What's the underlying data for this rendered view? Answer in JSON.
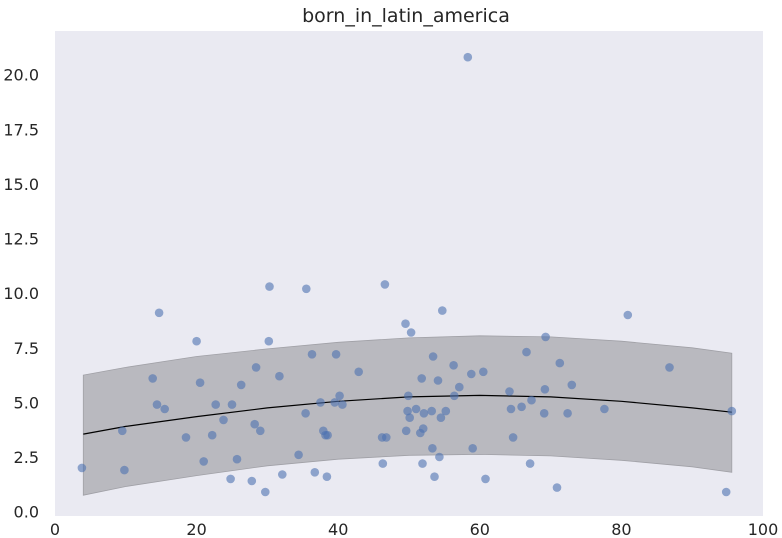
{
  "chart_data": {
    "type": "scatter",
    "title": "born_in_latin_america",
    "xlabel": "",
    "ylabel": "",
    "xlim": [
      0,
      100
    ],
    "ylim": [
      -0.2,
      22
    ],
    "x_ticks": [
      0,
      20,
      40,
      60,
      80,
      100
    ],
    "x_tick_labels": [
      "0",
      "20",
      "40",
      "60",
      "80",
      "100"
    ],
    "y_ticks": [
      0,
      2.5,
      5,
      7.5,
      10,
      12.5,
      15,
      17.5,
      20
    ],
    "y_tick_labels": [
      "0.0",
      "2.5",
      "5.0",
      "7.5",
      "10.0",
      "12.5",
      "15.0",
      "17.5",
      "20.0"
    ],
    "grid": false,
    "colors": {
      "background": "#eaeaf2",
      "points": "#4c72b0",
      "band": "#b0b0b6",
      "fit_line": "#000000"
    },
    "points": [
      {
        "x": 3.8,
        "y": 2.0
      },
      {
        "x": 9.5,
        "y": 3.7
      },
      {
        "x": 9.8,
        "y": 1.9
      },
      {
        "x": 13.8,
        "y": 6.1
      },
      {
        "x": 14.4,
        "y": 4.9
      },
      {
        "x": 14.7,
        "y": 9.1
      },
      {
        "x": 15.5,
        "y": 4.7
      },
      {
        "x": 18.5,
        "y": 3.4
      },
      {
        "x": 20.0,
        "y": 7.8
      },
      {
        "x": 20.5,
        "y": 5.9
      },
      {
        "x": 21.0,
        "y": 2.3
      },
      {
        "x": 22.2,
        "y": 3.5
      },
      {
        "x": 22.7,
        "y": 4.9
      },
      {
        "x": 23.8,
        "y": 4.2
      },
      {
        "x": 24.8,
        "y": 1.5
      },
      {
        "x": 25.0,
        "y": 4.9
      },
      {
        "x": 25.7,
        "y": 2.4
      },
      {
        "x": 26.3,
        "y": 5.8
      },
      {
        "x": 27.8,
        "y": 1.4
      },
      {
        "x": 28.2,
        "y": 4.0
      },
      {
        "x": 28.4,
        "y": 6.6
      },
      {
        "x": 29.0,
        "y": 3.7
      },
      {
        "x": 29.7,
        "y": 0.9
      },
      {
        "x": 30.2,
        "y": 7.8
      },
      {
        "x": 30.3,
        "y": 10.3
      },
      {
        "x": 31.7,
        "y": 6.2
      },
      {
        "x": 32.1,
        "y": 1.7
      },
      {
        "x": 34.4,
        "y": 2.6
      },
      {
        "x": 35.4,
        "y": 4.5
      },
      {
        "x": 35.5,
        "y": 10.2
      },
      {
        "x": 36.3,
        "y": 7.2
      },
      {
        "x": 36.7,
        "y": 1.8
      },
      {
        "x": 37.5,
        "y": 5.0
      },
      {
        "x": 37.9,
        "y": 3.7
      },
      {
        "x": 38.2,
        "y": 3.5
      },
      {
        "x": 38.4,
        "y": 1.6
      },
      {
        "x": 38.5,
        "y": 3.5
      },
      {
        "x": 39.5,
        "y": 5.0
      },
      {
        "x": 39.7,
        "y": 7.2
      },
      {
        "x": 40.2,
        "y": 5.3
      },
      {
        "x": 40.6,
        "y": 4.9
      },
      {
        "x": 42.9,
        "y": 6.4
      },
      {
        "x": 46.2,
        "y": 3.4
      },
      {
        "x": 46.3,
        "y": 2.2
      },
      {
        "x": 46.6,
        "y": 10.4
      },
      {
        "x": 46.8,
        "y": 3.4
      },
      {
        "x": 49.5,
        "y": 8.6
      },
      {
        "x": 49.6,
        "y": 3.7
      },
      {
        "x": 49.8,
        "y": 4.6
      },
      {
        "x": 49.9,
        "y": 5.3
      },
      {
        "x": 50.1,
        "y": 4.3
      },
      {
        "x": 50.3,
        "y": 8.2
      },
      {
        "x": 51.0,
        "y": 4.7
      },
      {
        "x": 51.6,
        "y": 3.6
      },
      {
        "x": 51.8,
        "y": 6.1
      },
      {
        "x": 51.9,
        "y": 2.2
      },
      {
        "x": 52.0,
        "y": 3.8
      },
      {
        "x": 52.1,
        "y": 4.5
      },
      {
        "x": 53.2,
        "y": 4.6
      },
      {
        "x": 53.3,
        "y": 2.9
      },
      {
        "x": 53.4,
        "y": 7.1
      },
      {
        "x": 53.6,
        "y": 1.6
      },
      {
        "x": 54.1,
        "y": 6.0
      },
      {
        "x": 54.3,
        "y": 2.5
      },
      {
        "x": 54.5,
        "y": 4.3
      },
      {
        "x": 54.7,
        "y": 9.2
      },
      {
        "x": 55.2,
        "y": 4.6
      },
      {
        "x": 56.3,
        "y": 6.7
      },
      {
        "x": 56.4,
        "y": 5.3
      },
      {
        "x": 57.1,
        "y": 5.7
      },
      {
        "x": 58.3,
        "y": 20.8
      },
      {
        "x": 58.8,
        "y": 6.3
      },
      {
        "x": 59.0,
        "y": 2.9
      },
      {
        "x": 60.5,
        "y": 6.4
      },
      {
        "x": 60.8,
        "y": 1.5
      },
      {
        "x": 64.2,
        "y": 5.5
      },
      {
        "x": 64.4,
        "y": 4.7
      },
      {
        "x": 64.7,
        "y": 3.4
      },
      {
        "x": 65.9,
        "y": 4.8
      },
      {
        "x": 66.6,
        "y": 7.3
      },
      {
        "x": 67.1,
        "y": 2.2
      },
      {
        "x": 67.3,
        "y": 5.1
      },
      {
        "x": 69.1,
        "y": 4.5
      },
      {
        "x": 69.2,
        "y": 5.6
      },
      {
        "x": 69.3,
        "y": 8.0
      },
      {
        "x": 70.9,
        "y": 1.1
      },
      {
        "x": 71.3,
        "y": 6.8
      },
      {
        "x": 72.4,
        "y": 4.5
      },
      {
        "x": 73.0,
        "y": 5.8
      },
      {
        "x": 77.6,
        "y": 4.7
      },
      {
        "x": 80.9,
        "y": 9.0
      },
      {
        "x": 86.8,
        "y": 6.6
      },
      {
        "x": 94.8,
        "y": 0.9
      },
      {
        "x": 95.6,
        "y": 4.6
      }
    ],
    "fit": {
      "x": [
        4,
        10,
        20,
        30,
        40,
        50,
        60,
        70,
        80,
        90,
        95.6
      ],
      "y": [
        3.55,
        3.9,
        4.35,
        4.75,
        5.05,
        5.25,
        5.32,
        5.25,
        5.05,
        4.75,
        4.55
      ],
      "lower": [
        0.75,
        1.15,
        1.65,
        2.1,
        2.4,
        2.58,
        2.62,
        2.55,
        2.35,
        2.05,
        1.8
      ],
      "upper": [
        6.25,
        6.6,
        7.1,
        7.45,
        7.75,
        7.95,
        8.05,
        8.0,
        7.8,
        7.5,
        7.25
      ]
    }
  }
}
